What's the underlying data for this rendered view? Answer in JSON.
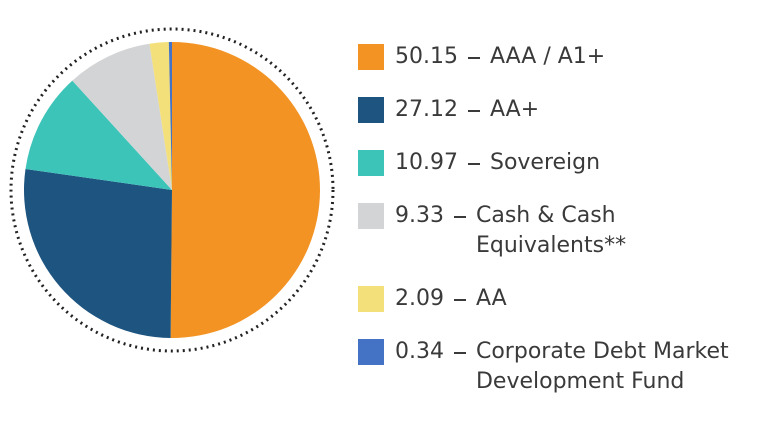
{
  "chart_data": {
    "type": "pie",
    "categories": [
      "AAA / A1+",
      "AA+",
      "Sovereign",
      "Cash & Cash Equivalents**",
      "AA",
      "Corporate Debt Market Development Fund"
    ],
    "values": [
      50.15,
      27.12,
      10.97,
      9.33,
      2.09,
      0.34
    ],
    "colors": [
      "#f39323",
      "#1d5480",
      "#3cc4b9",
      "#d3d4d6",
      "#f3e07a",
      "#4472c4"
    ]
  }
}
